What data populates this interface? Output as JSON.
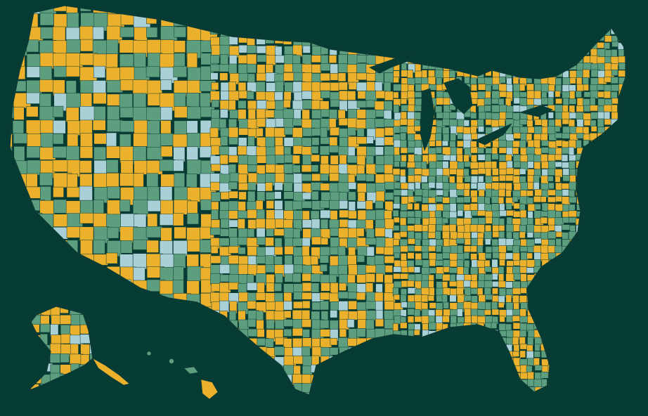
{
  "map": {
    "background_color": "#063c34",
    "border_color": "#0f3b33",
    "category_colors": {
      "yellow": "#ebb12d",
      "green": "#5d9e7f",
      "light": "#a8d0d6"
    },
    "regions": [
      {
        "name": "contiguous-united-states"
      },
      {
        "name": "alaska"
      },
      {
        "name": "hawaii"
      }
    ]
  }
}
